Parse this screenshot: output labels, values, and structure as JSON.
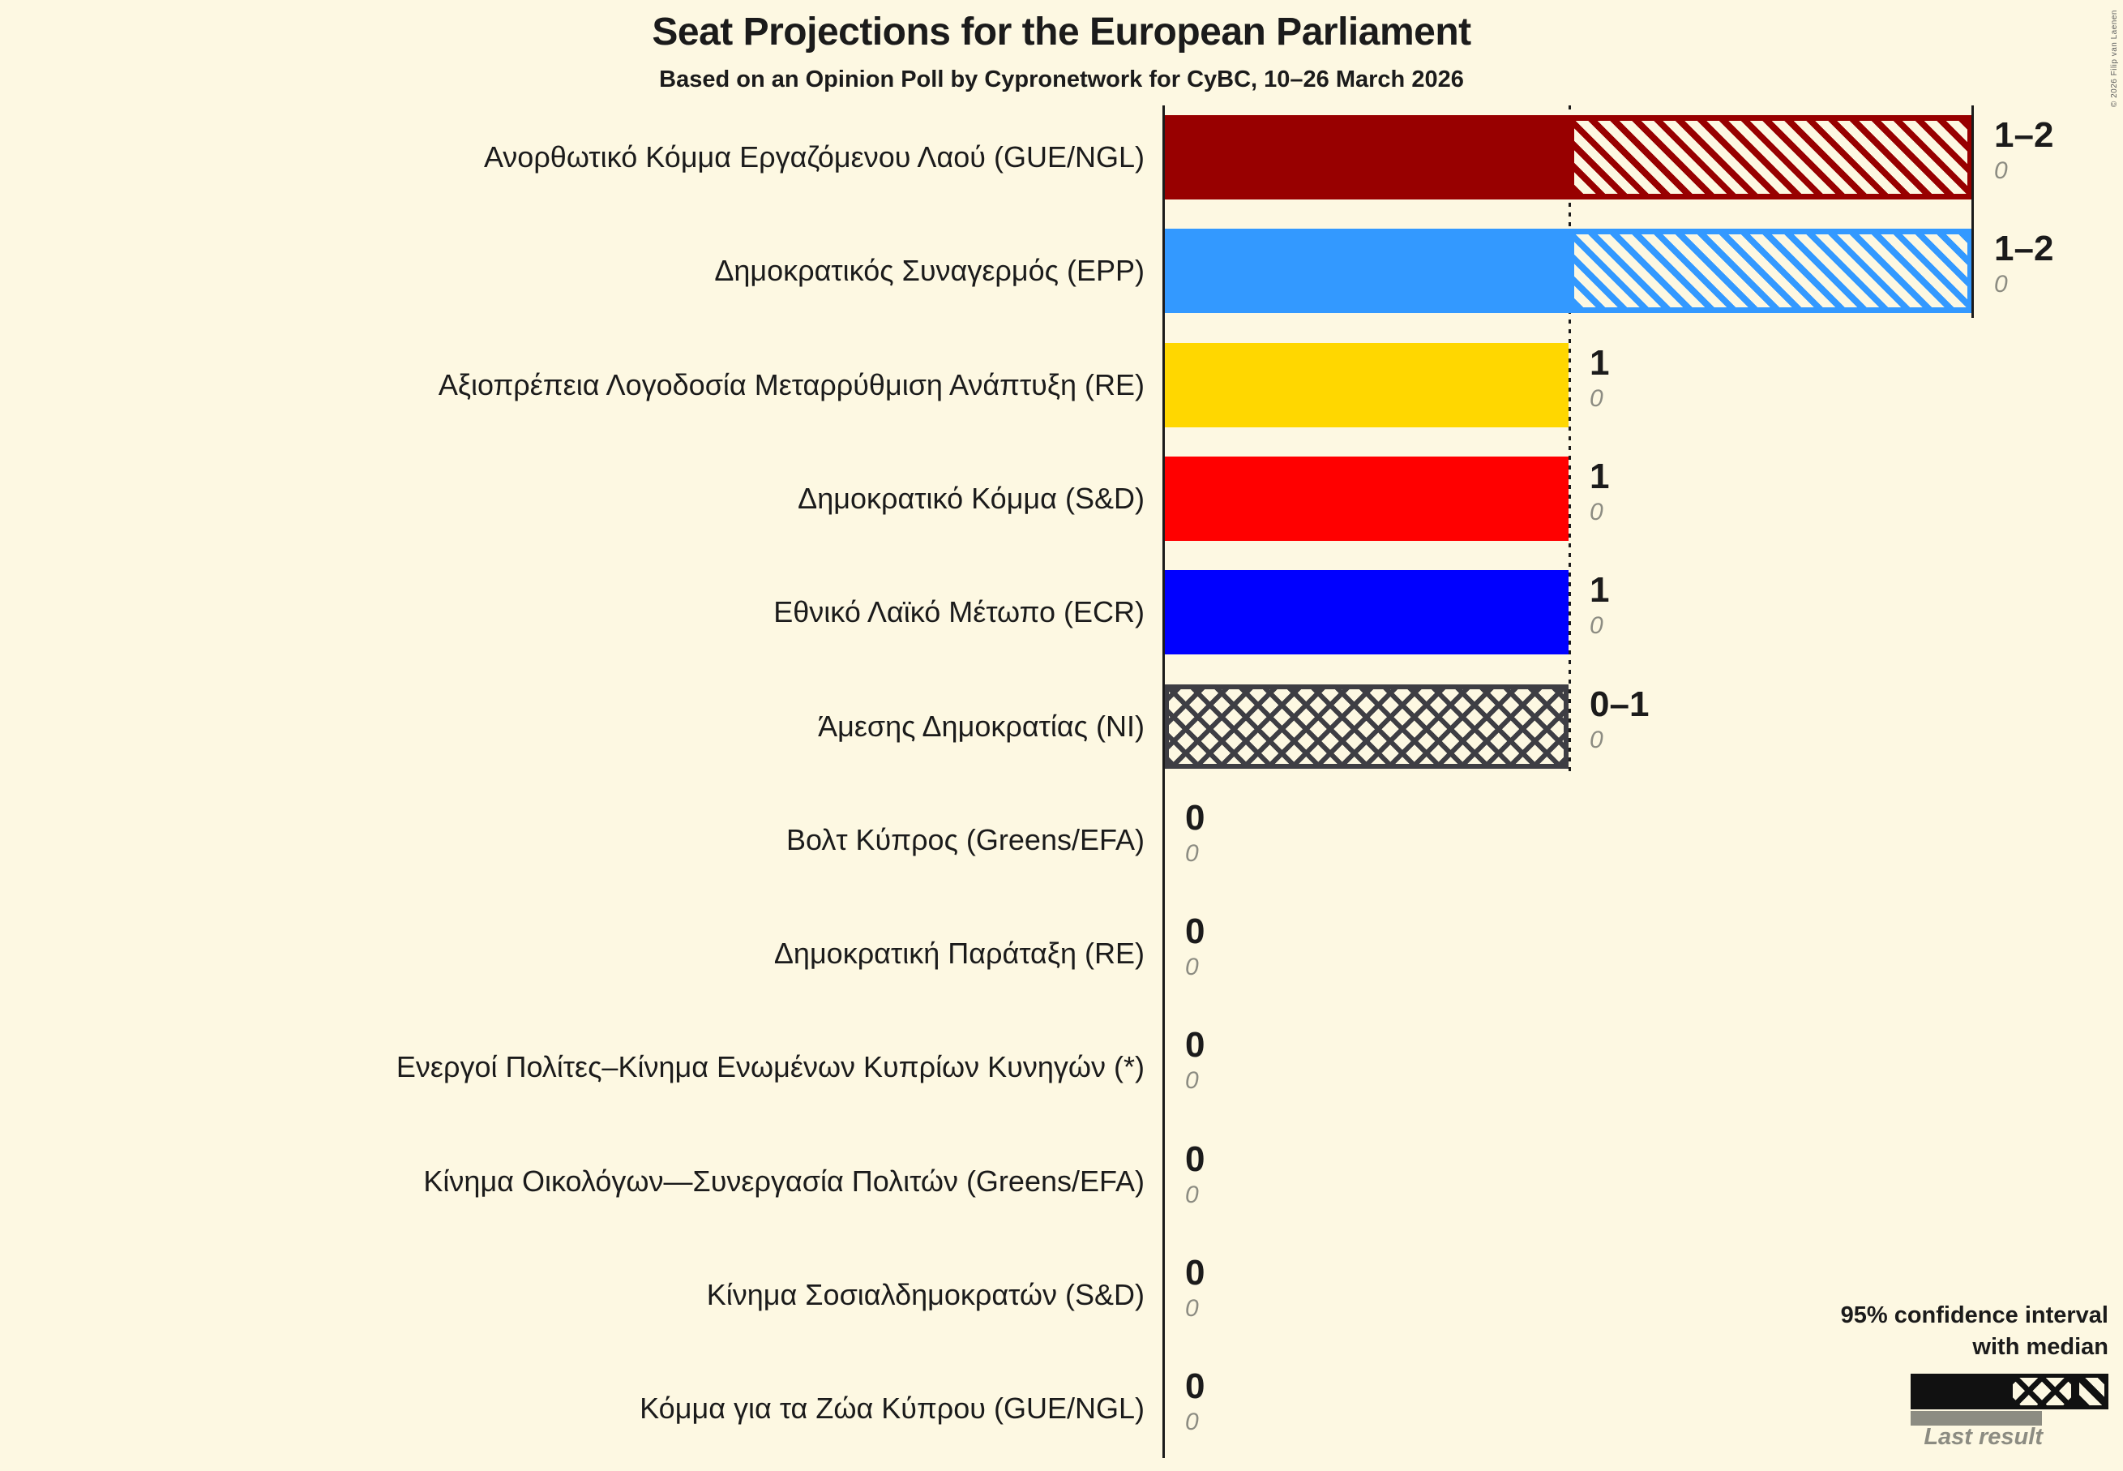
{
  "title": "Seat Projections for the European Parliament",
  "subtitle": "Based on an Opinion Poll by Cypronetwork for CyBC, 10–26 March 2026",
  "copyright": "© 2026 Filip van Laenen",
  "legend": {
    "ci_line1": "95% confidence interval",
    "ci_line2": "with median",
    "last_result": "Last result"
  },
  "colors": {
    "background": "#FDF8E2",
    "ink": "#1B1B1B",
    "muted": "#8C8C82",
    "legend_bar": "#111111"
  },
  "chart_data": {
    "type": "bar",
    "orientation": "horizontal",
    "unit": "seats",
    "x_axis": {
      "min": 0,
      "max": 2,
      "gridlines": [
        {
          "at": 1,
          "style": "dotted"
        },
        {
          "at": 2,
          "style": "solid"
        }
      ]
    },
    "rows": [
      {
        "party": "Ανορθωτικό Κόμμα Εργαζόμενου Λαού (GUE/NGL)",
        "ci_low": 1,
        "median": 1,
        "ci_high": 2,
        "projection_label": "1–2",
        "last_result": 0,
        "last_result_label": "0",
        "color": "#980000"
      },
      {
        "party": "Δημοκρατικός Συναγερμός (EPP)",
        "ci_low": 1,
        "median": 1,
        "ci_high": 2,
        "projection_label": "1–2",
        "last_result": 0,
        "last_result_label": "0",
        "color": "#3399FF"
      },
      {
        "party": "Αξιοπρέπεια Λογοδοσία Μεταρρύθμιση Ανάπτυξη (RE)",
        "ci_low": 1,
        "median": 1,
        "ci_high": 1,
        "projection_label": "1",
        "last_result": 0,
        "last_result_label": "0",
        "color": "#FFD700"
      },
      {
        "party": "Δημοκρατικό Κόμμα (S&D)",
        "ci_low": 1,
        "median": 1,
        "ci_high": 1,
        "projection_label": "1",
        "last_result": 0,
        "last_result_label": "0",
        "color": "#FF0000"
      },
      {
        "party": "Εθνικό Λαϊκό Μέτωπο (ECR)",
        "ci_low": 1,
        "median": 1,
        "ci_high": 1,
        "projection_label": "1",
        "last_result": 0,
        "last_result_label": "0",
        "color": "#0000FF"
      },
      {
        "party": "Άμεσης Δημοκρατίας (NI)",
        "ci_low": 0,
        "median": 1,
        "ci_high": 1,
        "projection_label": "0–1",
        "last_result": 0,
        "last_result_label": "0",
        "color": "#3E3E44"
      },
      {
        "party": "Βολτ Κύπρος (Greens/EFA)",
        "ci_low": 0,
        "median": 0,
        "ci_high": 0,
        "projection_label": "0",
        "last_result": 0,
        "last_result_label": "0",
        "color": null
      },
      {
        "party": "Δημοκρατική Παράταξη (RE)",
        "ci_low": 0,
        "median": 0,
        "ci_high": 0,
        "projection_label": "0",
        "last_result": 0,
        "last_result_label": "0",
        "color": null
      },
      {
        "party": "Ενεργοί Πολίτες–Κίνημα Ενωμένων Κυπρίων Κυνηγών (*)",
        "ci_low": 0,
        "median": 0,
        "ci_high": 0,
        "projection_label": "0",
        "last_result": 0,
        "last_result_label": "0",
        "color": null
      },
      {
        "party": "Κίνημα Οικολόγων—Συνεργασία Πολιτών (Greens/EFA)",
        "ci_low": 0,
        "median": 0,
        "ci_high": 0,
        "projection_label": "0",
        "last_result": 0,
        "last_result_label": "0",
        "color": null
      },
      {
        "party": "Κίνημα Σοσιαλδημοκρατών (S&D)",
        "ci_low": 0,
        "median": 0,
        "ci_high": 0,
        "projection_label": "0",
        "last_result": 0,
        "last_result_label": "0",
        "color": null
      },
      {
        "party": "Κόμμα για τα Ζώα Κύπρου (GUE/NGL)",
        "ci_low": 0,
        "median": 0,
        "ci_high": 0,
        "projection_label": "0",
        "last_result": 0,
        "last_result_label": "0",
        "color": null
      }
    ]
  }
}
